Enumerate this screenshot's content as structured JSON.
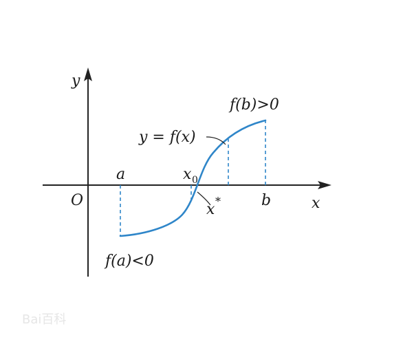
{
  "axes": {
    "x_label": "x",
    "y_label": "y",
    "origin_label": "O"
  },
  "curve": {
    "label": "y = f(x)",
    "color": "#2f86c9"
  },
  "points": {
    "a_label": "a",
    "b_label": "b",
    "x0_label": "x",
    "x0_subscript": "0",
    "xstar_label": "x",
    "xstar_superscript": "*"
  },
  "annotations": {
    "fa": "f(a)<0",
    "fb": "f(b)>0"
  },
  "colors": {
    "axis": "#222222",
    "dashed": "#2f86c9",
    "text": "#1a1a1a"
  },
  "watermark": {
    "text": "Bai百科"
  }
}
